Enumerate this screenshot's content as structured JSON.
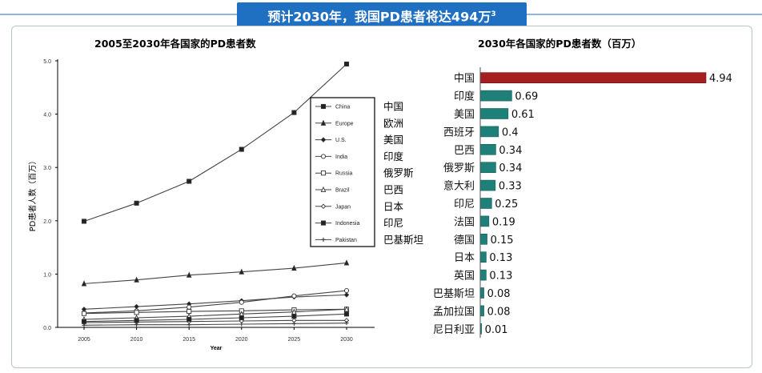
{
  "banner": {
    "title": "预计2030年，我国PD患者将达494万",
    "superscript": "3"
  },
  "chart_data": [
    {
      "type": "line",
      "title": "2005至2030年各国家的PD患者数",
      "xlabel": "Year",
      "ylabel": "PD患者人数（百万）",
      "x": [
        2005,
        2010,
        2015,
        2020,
        2025,
        2030
      ],
      "ylim": [
        0,
        5
      ],
      "y_ticks": [
        "0.0",
        "1.0",
        "2.0",
        "3.0",
        "4.0",
        "5.0"
      ],
      "grid": false,
      "legend_position": "right",
      "series": [
        {
          "name": "China",
          "name_cn": "中国",
          "marker": "square-filled",
          "values": [
            1.99,
            2.33,
            2.74,
            3.34,
            4.03,
            4.94
          ]
        },
        {
          "name": "Europe",
          "name_cn": "欧洲",
          "marker": "triangle-filled",
          "values": [
            0.82,
            0.89,
            0.98,
            1.04,
            1.11,
            1.21
          ]
        },
        {
          "name": "U.S.",
          "name_cn": "美国",
          "marker": "diamond-filled",
          "values": [
            0.34,
            0.39,
            0.44,
            0.5,
            0.57,
            0.61
          ]
        },
        {
          "name": "India",
          "name_cn": "印度",
          "marker": "circle-open",
          "values": [
            0.27,
            0.31,
            0.38,
            0.47,
            0.59,
            0.69
          ]
        },
        {
          "name": "Russia",
          "name_cn": "俄罗斯",
          "marker": "square-open",
          "values": [
            0.26,
            0.28,
            0.3,
            0.31,
            0.33,
            0.34
          ]
        },
        {
          "name": "Brazil",
          "name_cn": "巴西",
          "marker": "triangle-open",
          "values": [
            0.15,
            0.18,
            0.21,
            0.25,
            0.29,
            0.34
          ]
        },
        {
          "name": "Japan",
          "name_cn": "日本",
          "marker": "diamond-open",
          "values": [
            0.09,
            0.1,
            0.11,
            0.12,
            0.13,
            0.13
          ]
        },
        {
          "name": "Indonesia",
          "name_cn": "印尼",
          "marker": "square-filled",
          "values": [
            0.11,
            0.13,
            0.15,
            0.18,
            0.21,
            0.25
          ]
        },
        {
          "name": "Pakistan",
          "name_cn": "巴基斯坦",
          "marker": "plus",
          "values": [
            0.04,
            0.05,
            0.05,
            0.06,
            0.07,
            0.08
          ]
        }
      ]
    },
    {
      "type": "bar",
      "orientation": "horizontal",
      "title": "2030年各国家的PD患者数（百万）",
      "categories": [
        "中国",
        "印度",
        "美国",
        "西班牙",
        "巴西",
        "俄罗斯",
        "意大利",
        "印尼",
        "法国",
        "德国",
        "日本",
        "英国",
        "巴基斯坦",
        "孟加拉国",
        "尼日利亚"
      ],
      "values": [
        4.94,
        0.69,
        0.61,
        0.4,
        0.34,
        0.34,
        0.33,
        0.25,
        0.19,
        0.15,
        0.13,
        0.13,
        0.08,
        0.08,
        0.01
      ],
      "value_labels": [
        "4.94",
        "0.69",
        "0.61",
        "0.4",
        "0.34",
        "0.34",
        "0.33",
        "0.25",
        "0.19",
        "0.15",
        "0.13",
        "0.13",
        "0.08",
        "0.08",
        "0.01"
      ],
      "colors": {
        "highlight": "#a41f1f",
        "default": "#1f7f79"
      }
    }
  ]
}
